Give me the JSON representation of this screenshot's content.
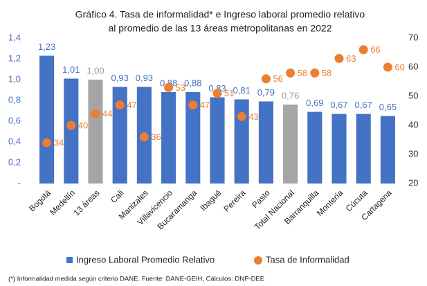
{
  "chart_data": {
    "type": "bar_dot",
    "title": [
      "Gráfico  4. Tasa de informalidad* e Ingreso laboral promedio relativo",
      "al promedio de las 13 áreas metropolitanas en 2022"
    ],
    "categories": [
      "Bogotá",
      "Medellín",
      "13 áreas",
      "Cali",
      "Manizales",
      "Villavicencio",
      "Bucaramanga",
      "Ibagué",
      "Pereira",
      "Pasto",
      "Total Nacional",
      "Barranquilla",
      "Montería",
      "Cúcuta",
      "Cartagena"
    ],
    "series": [
      {
        "name": "Ingreso Laboral Promedio Relativo",
        "color": "#4472c4",
        "colors": [
          "#4472c4",
          "#4472c4",
          "#a5a5a5",
          "#4472c4",
          "#4472c4",
          "#4472c4",
          "#4472c4",
          "#4472c4",
          "#4472c4",
          "#4472c4",
          "#a5a5a5",
          "#4472c4",
          "#4472c4",
          "#4472c4",
          "#4472c4"
        ],
        "values": [
          1.23,
          1.01,
          1.0,
          0.93,
          0.93,
          0.88,
          0.88,
          0.83,
          0.81,
          0.79,
          0.76,
          0.69,
          0.67,
          0.67,
          0.65
        ],
        "value_labels": [
          "1,23",
          "1,01",
          "1,00",
          "0,93",
          "0,93",
          "0,88",
          "0,88",
          "0,83",
          "0,81",
          "0,79",
          "0,76",
          "0,69",
          "0,67",
          "0,67",
          "0,65"
        ]
      },
      {
        "name": "Tasa de Informalidad",
        "color": "#ed7d31",
        "axis": "y2",
        "values": [
          34,
          40,
          44,
          47,
          36,
          53,
          47,
          51,
          43,
          56,
          58,
          58,
          63,
          66,
          60
        ]
      }
    ],
    "ylim": [
      0,
      1.4
    ],
    "yticks": [
      {
        "value": 0,
        "label": "-"
      },
      {
        "value": 0.2,
        "label": "0,2"
      },
      {
        "value": 0.4,
        "label": "0,4"
      },
      {
        "value": 0.6,
        "label": "0,6"
      },
      {
        "value": 0.8,
        "label": "0,8"
      },
      {
        "value": 1.0,
        "label": "1,0"
      },
      {
        "value": 1.2,
        "label": "1,2"
      },
      {
        "value": 1.4,
        "label": "1,4"
      }
    ],
    "y2lim": [
      20,
      70
    ],
    "y2ticks": [
      20,
      30,
      40,
      50,
      60,
      70
    ],
    "footnote": "(*) Informalidad medida según criterio DANE. Fuente: DANE-GEIH, Cálculos: DNP-DEE"
  }
}
